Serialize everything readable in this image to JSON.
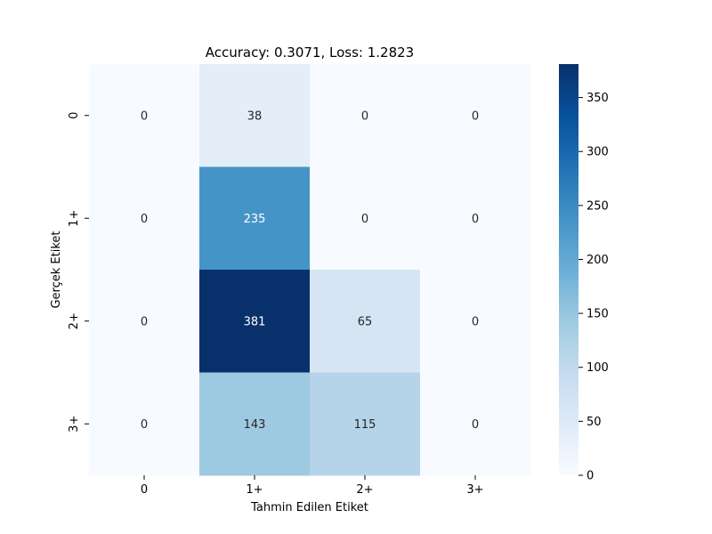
{
  "chart_data": {
    "type": "heatmap",
    "title": "Accuracy: 0.3071, Loss: 1.2823",
    "xlabel": "Tahmin Edilen Etiket",
    "ylabel": "Gerçek Etiket",
    "x_categories": [
      "0",
      "1+",
      "2+",
      "3+"
    ],
    "y_categories": [
      "0",
      "1+",
      "2+",
      "3+"
    ],
    "values": [
      [
        0,
        38,
        0,
        0
      ],
      [
        0,
        235,
        0,
        0
      ],
      [
        0,
        381,
        65,
        0
      ],
      [
        0,
        143,
        115,
        0
      ]
    ],
    "colormap": "Blues",
    "color_range": [
      0,
      381
    ],
    "colorbar_ticks": [
      0,
      50,
      100,
      150,
      200,
      250,
      300,
      350
    ],
    "grid": false,
    "colors": {
      "low": "#f7fbff",
      "high": "#08306b",
      "text_dark": "#262626",
      "text_light": "#ffffff"
    }
  }
}
